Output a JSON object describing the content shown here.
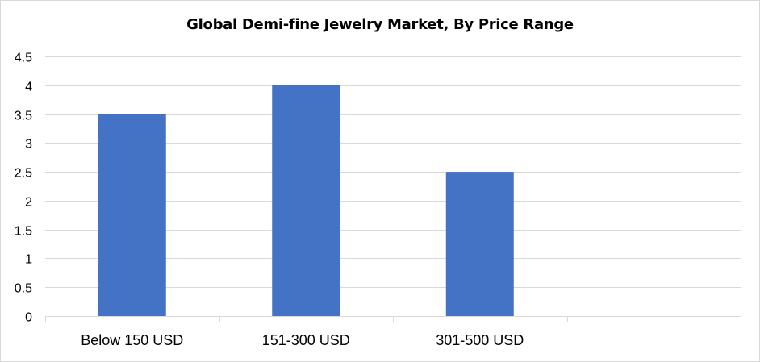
{
  "chart_data": {
    "type": "bar",
    "title": "Global Demi-fine Jewelry Market, By Price Range",
    "xlabel": "",
    "ylabel": "",
    "categories": [
      "Below 150 USD",
      "151-300 USD",
      "301-500 USD",
      ""
    ],
    "values": [
      3.5,
      4.0,
      2.5,
      null
    ],
    "ylim": [
      0,
      4.5
    ],
    "yticks": [
      "0",
      "0.5",
      "1",
      "1.5",
      "2",
      "2.5",
      "3",
      "3.5",
      "4",
      "4.5"
    ],
    "grid": true,
    "legend": "none",
    "bar_color": "#4472c4",
    "grid_color": "#d9d9d9"
  }
}
